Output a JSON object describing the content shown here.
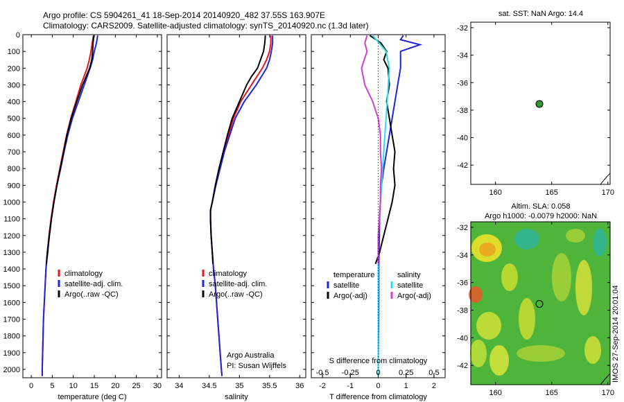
{
  "title_line1": "Argo profile: CS 5904261_41 18-Sep-2014 20140920_482 37.55S 163.907E",
  "title_line2": "Climatology: CARS2009. Satellite-adjusted climatology: synTS_20140920.nc (1.3d later)",
  "side_stamp": "IMOS 27-Sep-2014 20:01:04",
  "colors": {
    "climatology": "#e8141a",
    "satellite": "#1d23e0",
    "argo": "#000000",
    "argo_s": "#d23cd2",
    "sat_s": "#2ae0e8",
    "point": "#2a9a2a"
  },
  "chart_data": [
    {
      "type": "line",
      "xlabel": "temperature (deg C)",
      "ylabel": "",
      "xlim": [
        -2,
        31
      ],
      "ylim": [
        2050,
        0
      ],
      "xticks": [
        "0",
        "5",
        "10",
        "15",
        "20",
        "25",
        "30"
      ],
      "yticks": [
        "0",
        "100",
        "200",
        "300",
        "400",
        "500",
        "600",
        "700",
        "800",
        "900",
        "1000",
        "1100",
        "1200",
        "1300",
        "1400",
        "1500",
        "1600",
        "1700",
        "1800",
        "1900",
        "2000"
      ],
      "legend": [
        "climatology",
        "satellite-adj. clim.",
        "Argo(..raw -QC)"
      ],
      "series": [
        {
          "name": "climatology",
          "depth": [
            5,
            50,
            100,
            150,
            200,
            300,
            400,
            500,
            600,
            700,
            800,
            900,
            1000,
            1100,
            1200,
            1300,
            1400,
            1500,
            1600,
            1700,
            1800,
            1900,
            2000,
            2040
          ],
          "values": [
            14.8,
            14.5,
            14.2,
            13.8,
            13.3,
            11.8,
            10.6,
            9.4,
            8.4,
            7.6,
            6.8,
            6.0,
            5.3,
            4.7,
            4.2,
            3.8,
            3.5,
            3.3,
            3.1,
            2.9,
            2.8,
            2.7,
            2.6,
            2.6
          ]
        },
        {
          "name": "satellite-adj. clim.",
          "depth": [
            5,
            50,
            100,
            150,
            200,
            300,
            400,
            500,
            600,
            700,
            800,
            900,
            1000,
            1100,
            1200,
            1300,
            1400,
            1500,
            1600,
            1700,
            1800,
            1900,
            2000,
            2040
          ],
          "values": [
            15.8,
            15.5,
            15.0,
            14.6,
            14.0,
            12.6,
            11.2,
            9.8,
            8.7,
            7.8,
            7.0,
            6.1,
            5.4,
            4.8,
            4.3,
            3.8,
            3.5,
            3.3,
            3.1,
            2.9,
            2.8,
            2.7,
            2.6,
            2.6
          ]
        },
        {
          "name": "Argo(..raw -QC)",
          "depth": [
            5,
            50,
            100,
            150,
            200,
            300,
            400,
            500,
            600,
            700,
            800,
            900,
            1000,
            1100,
            1200,
            1300,
            1370
          ],
          "values": [
            14.9,
            14.7,
            14.6,
            14.4,
            13.9,
            12.2,
            10.8,
            9.5,
            8.5,
            7.7,
            6.9,
            6.1,
            5.4,
            4.8,
            4.3,
            3.9,
            3.6
          ]
        }
      ]
    },
    {
      "type": "line",
      "xlabel": "salinity",
      "ylabel": "",
      "xlim": [
        33.8,
        36.1
      ],
      "ylim": [
        2050,
        0
      ],
      "xticks": [
        "34",
        "34.5",
        "35",
        "35.5",
        "36"
      ],
      "legend": [
        "climatology",
        "satellite-adj. clim.",
        "Argo(..raw -QC)"
      ],
      "annotations": [
        "Argo Australia",
        "PI: Susan Wijffels"
      ],
      "series": [
        {
          "name": "climatology",
          "depth": [
            5,
            50,
            100,
            150,
            200,
            300,
            400,
            500,
            600,
            700,
            800,
            900,
            1000,
            1050,
            1100,
            1200,
            1300,
            1400,
            1500,
            1600,
            1700,
            1800,
            1900,
            2000,
            2040
          ],
          "values": [
            35.52,
            35.52,
            35.5,
            35.45,
            35.38,
            35.2,
            35.02,
            34.9,
            34.82,
            34.74,
            34.67,
            34.6,
            34.55,
            34.52,
            34.52,
            34.53,
            34.55,
            34.57,
            34.6,
            34.62,
            34.64,
            34.66,
            34.68,
            34.7,
            34.71
          ]
        },
        {
          "name": "satellite-adj. clim.",
          "depth": [
            5,
            50,
            100,
            150,
            200,
            300,
            400,
            500,
            600,
            700,
            800,
            900,
            1000,
            1050,
            1100,
            1200,
            1300,
            1400,
            1500,
            1600,
            1700,
            1800,
            1900,
            2000,
            2040
          ],
          "values": [
            35.55,
            35.55,
            35.53,
            35.5,
            35.45,
            35.28,
            35.08,
            34.93,
            34.84,
            34.75,
            34.68,
            34.61,
            34.55,
            34.52,
            34.52,
            34.53,
            34.55,
            34.57,
            34.6,
            34.62,
            34.64,
            34.66,
            34.68,
            34.7,
            34.71
          ]
        },
        {
          "name": "Argo(..raw -QC)",
          "depth": [
            5,
            50,
            100,
            150,
            200,
            250,
            300,
            400,
            500,
            600,
            700,
            800,
            900,
            1000,
            1050,
            1100,
            1200,
            1300,
            1370
          ],
          "values": [
            35.43,
            35.42,
            35.4,
            35.35,
            35.3,
            35.2,
            35.12,
            35.0,
            34.88,
            34.8,
            34.73,
            34.66,
            34.6,
            34.55,
            34.52,
            34.52,
            34.53,
            34.55,
            34.56
          ]
        }
      ]
    },
    {
      "type": "line",
      "xlabel": "T difference from climatology",
      "top_label": "S difference from climatology",
      "xlim": [
        -2.4,
        2.4
      ],
      "ylim": [
        2050,
        0
      ],
      "xticks": [
        "-2",
        "-1",
        "0",
        "1",
        "2"
      ],
      "top_ticks": [
        "-0.5",
        "-0.25",
        "0",
        "0.25",
        "0.5"
      ],
      "legend_left": [
        "temperature",
        "satellite",
        "Argo(-adj)"
      ],
      "legend_right": [
        "salinity",
        "satellite",
        "Argo(-adj)"
      ],
      "series": [
        {
          "name": "satellite",
          "depth": [
            5,
            30,
            60,
            100,
            150,
            200,
            300,
            400,
            500,
            600,
            700,
            800,
            900,
            1000,
            1100,
            1200,
            1300,
            1400,
            1600,
            1800,
            2000,
            2040
          ],
          "values": [
            0.9,
            0.8,
            1.5,
            0.8,
            0.8,
            0.8,
            0.7,
            0.6,
            0.5,
            0.4,
            0.3,
            0.2,
            0.12,
            0.08,
            0.05,
            0.04,
            0.03,
            0.02,
            0.02,
            0.01,
            0.0,
            0.0
          ]
        },
        {
          "name": "Argo(-adj)",
          "depth": [
            5,
            50,
            100,
            150,
            200,
            300,
            400,
            500,
            600,
            700,
            800,
            900,
            1000,
            1100,
            1200,
            1300,
            1370
          ],
          "values": [
            -0.3,
            0.1,
            0.3,
            0.2,
            0.35,
            0.4,
            0.3,
            0.4,
            0.5,
            0.6,
            0.55,
            0.6,
            0.5,
            0.35,
            0.2,
            0.05,
            -0.1
          ]
        },
        {
          "name": "satellite",
          "depth": [
            5,
            100,
            200,
            300,
            400,
            500,
            600,
            700,
            800,
            900,
            1000,
            1100,
            1200,
            1300,
            1400,
            1500,
            1600,
            1800,
            2000,
            2040
          ],
          "values": [
            -0.05,
            0.07,
            0.1,
            0.09,
            0.08,
            0.07,
            0.06,
            0.05,
            0.04,
            0.03,
            0.02,
            0.01,
            0.0,
            0.0,
            0.0,
            0.0,
            0.0,
            0.0,
            0.0,
            0.0
          ]
        },
        {
          "name": "Argo(-adj)",
          "depth": [
            5,
            50,
            100,
            200,
            300,
            400,
            500,
            600,
            700,
            800,
            900,
            1000,
            1100,
            1200,
            1300,
            1370
          ],
          "values": [
            -0.1,
            -0.12,
            -0.1,
            -0.15,
            -0.12,
            -0.05,
            0.0,
            0.02,
            0.02,
            0.03,
            0.02,
            0.02,
            0.01,
            0.0,
            0.0,
            0.0
          ]
        }
      ]
    }
  ],
  "map_top": {
    "title": "sat. SST: NaN Argo: 14.4",
    "xticks": [
      "160",
      "165",
      "170"
    ],
    "yticks": [
      "-32",
      "-34",
      "-36",
      "-38",
      "-40",
      "-42"
    ],
    "xlim": [
      157.8,
      170.2
    ],
    "ylim": [
      -43.4,
      -31.6
    ],
    "point": {
      "lon": 163.907,
      "lat": -37.55
    }
  },
  "map_bottom": {
    "title_line1": "Altim. SLA: 0.058",
    "title_line2": "Argo h1000: -0.0079 h2000: NaN",
    "xticks": [
      "160",
      "165",
      "170"
    ],
    "yticks": [
      "-32",
      "-34",
      "-36",
      "-38",
      "-40",
      "-42"
    ],
    "xlim": [
      157.8,
      170.2
    ],
    "ylim": [
      -43.4,
      -31.6
    ],
    "point": {
      "lon": 163.907,
      "lat": -37.55
    }
  }
}
